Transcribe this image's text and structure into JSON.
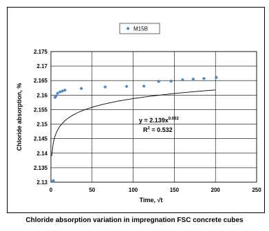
{
  "chart_data": {
    "type": "scatter",
    "caption": "Chloride absorption variation in impregnation FSC concrete cubes",
    "xlabel": "Time, √t",
    "ylabel": "Chloride absorption, %",
    "xlim": [
      0,
      250
    ],
    "ylim": [
      2.13,
      2.175
    ],
    "x_ticks": [
      0,
      50,
      100,
      150,
      200,
      250
    ],
    "y_ticks": [
      2.13,
      2.135,
      2.14,
      2.145,
      2.15,
      2.155,
      2.16,
      2.165,
      2.17,
      2.175
    ],
    "y_tick_labels": [
      "2.13",
      "2.135",
      "2.14",
      "2.145",
      "2.15",
      "2.155",
      "2.16",
      "2.165",
      "2.17",
      "2.175"
    ],
    "grid": "horizontal and vertical",
    "legend": {
      "position": "top-center",
      "entries": [
        "M15B"
      ]
    },
    "series": [
      {
        "name": "M15B",
        "color": "#4f86c6",
        "marker": "diamond",
        "points": [
          [
            2,
            2.1303
          ],
          [
            3,
            2.1305
          ],
          [
            5,
            2.1592
          ],
          [
            6,
            2.1596
          ],
          [
            8,
            2.1606
          ],
          [
            11,
            2.1611
          ],
          [
            14,
            2.1614
          ],
          [
            17,
            2.1617
          ],
          [
            37,
            2.1623
          ],
          [
            66,
            2.1628
          ],
          [
            92,
            2.163
          ],
          [
            113,
            2.1631
          ],
          [
            131,
            2.1647
          ],
          [
            146,
            2.1648
          ],
          [
            160,
            2.1653
          ],
          [
            173,
            2.1655
          ],
          [
            186,
            2.1657
          ],
          [
            201,
            2.1661
          ]
        ]
      }
    ],
    "trendline": {
      "type": "power",
      "a": 2.139,
      "b": 0.002,
      "x_range": [
        1,
        200
      ],
      "color": "#000000"
    },
    "annotations": {
      "equation_base": "y = 2.139x",
      "equation_exp": "0.002",
      "r2_base": "R",
      "r2_exp": "2",
      "r2_value": " = 0.532"
    }
  }
}
